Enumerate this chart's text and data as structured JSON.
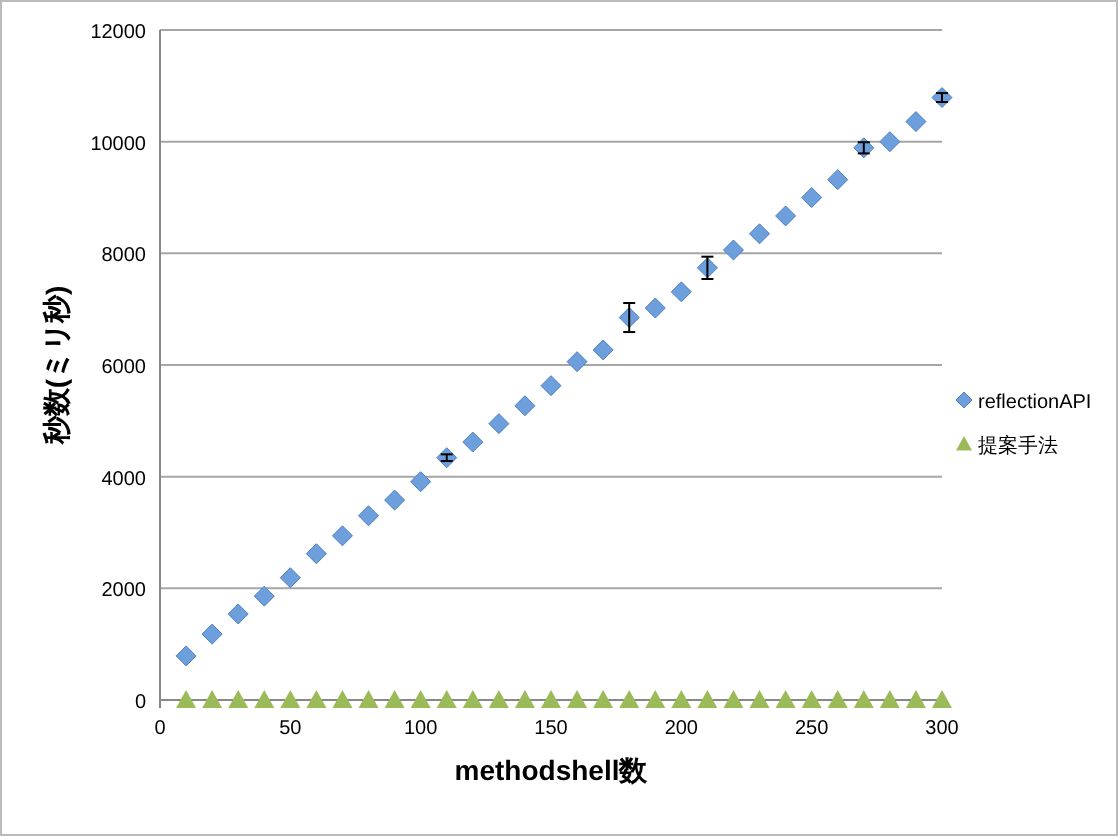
{
  "chart_data": {
    "type": "scatter",
    "xlabel": "methodshell数",
    "ylabel": "秒数(ミリ秒)",
    "xlim": [
      0,
      300
    ],
    "xticks": [
      0,
      50,
      100,
      150,
      200,
      250,
      300
    ],
    "ylim": [
      0,
      12000
    ],
    "yticks": [
      0,
      2000,
      4000,
      6000,
      8000,
      10000,
      12000
    ],
    "grid": "y",
    "legend": "right",
    "series": [
      {
        "name": "reflectionAPI",
        "color": "#6c9fdc",
        "marker": "diamond",
        "x": [
          10,
          20,
          30,
          40,
          50,
          60,
          70,
          80,
          90,
          100,
          110,
          120,
          130,
          140,
          150,
          160,
          170,
          180,
          190,
          200,
          210,
          220,
          230,
          240,
          250,
          260,
          270,
          280,
          290,
          300
        ],
        "values": [
          790,
          1180,
          1540,
          1860,
          2190,
          2620,
          2940,
          3300,
          3580,
          3910,
          4340,
          4620,
          4950,
          5270,
          5630,
          6060,
          6270,
          6850,
          7020,
          7310,
          7740,
          8060,
          8350,
          8670,
          9000,
          9320,
          9890,
          10000,
          10360,
          10790
        ],
        "errors": [
          null,
          null,
          null,
          null,
          null,
          null,
          null,
          null,
          null,
          null,
          60,
          null,
          null,
          null,
          null,
          null,
          null,
          260,
          null,
          null,
          200,
          null,
          null,
          null,
          null,
          null,
          100,
          null,
          null,
          80
        ]
      },
      {
        "name": "提案手法",
        "color": "#9bbb59",
        "marker": "triangle",
        "x": [
          10,
          20,
          30,
          40,
          50,
          60,
          70,
          80,
          90,
          100,
          110,
          120,
          130,
          140,
          150,
          160,
          170,
          180,
          190,
          200,
          210,
          220,
          230,
          240,
          250,
          260,
          270,
          280,
          290,
          300
        ],
        "values": [
          0,
          0,
          0,
          0,
          0,
          0,
          0,
          0,
          0,
          0,
          0,
          0,
          0,
          0,
          0,
          0,
          0,
          0,
          0,
          0,
          0,
          0,
          0,
          0,
          0,
          0,
          0,
          0,
          0,
          0
        ]
      }
    ]
  }
}
